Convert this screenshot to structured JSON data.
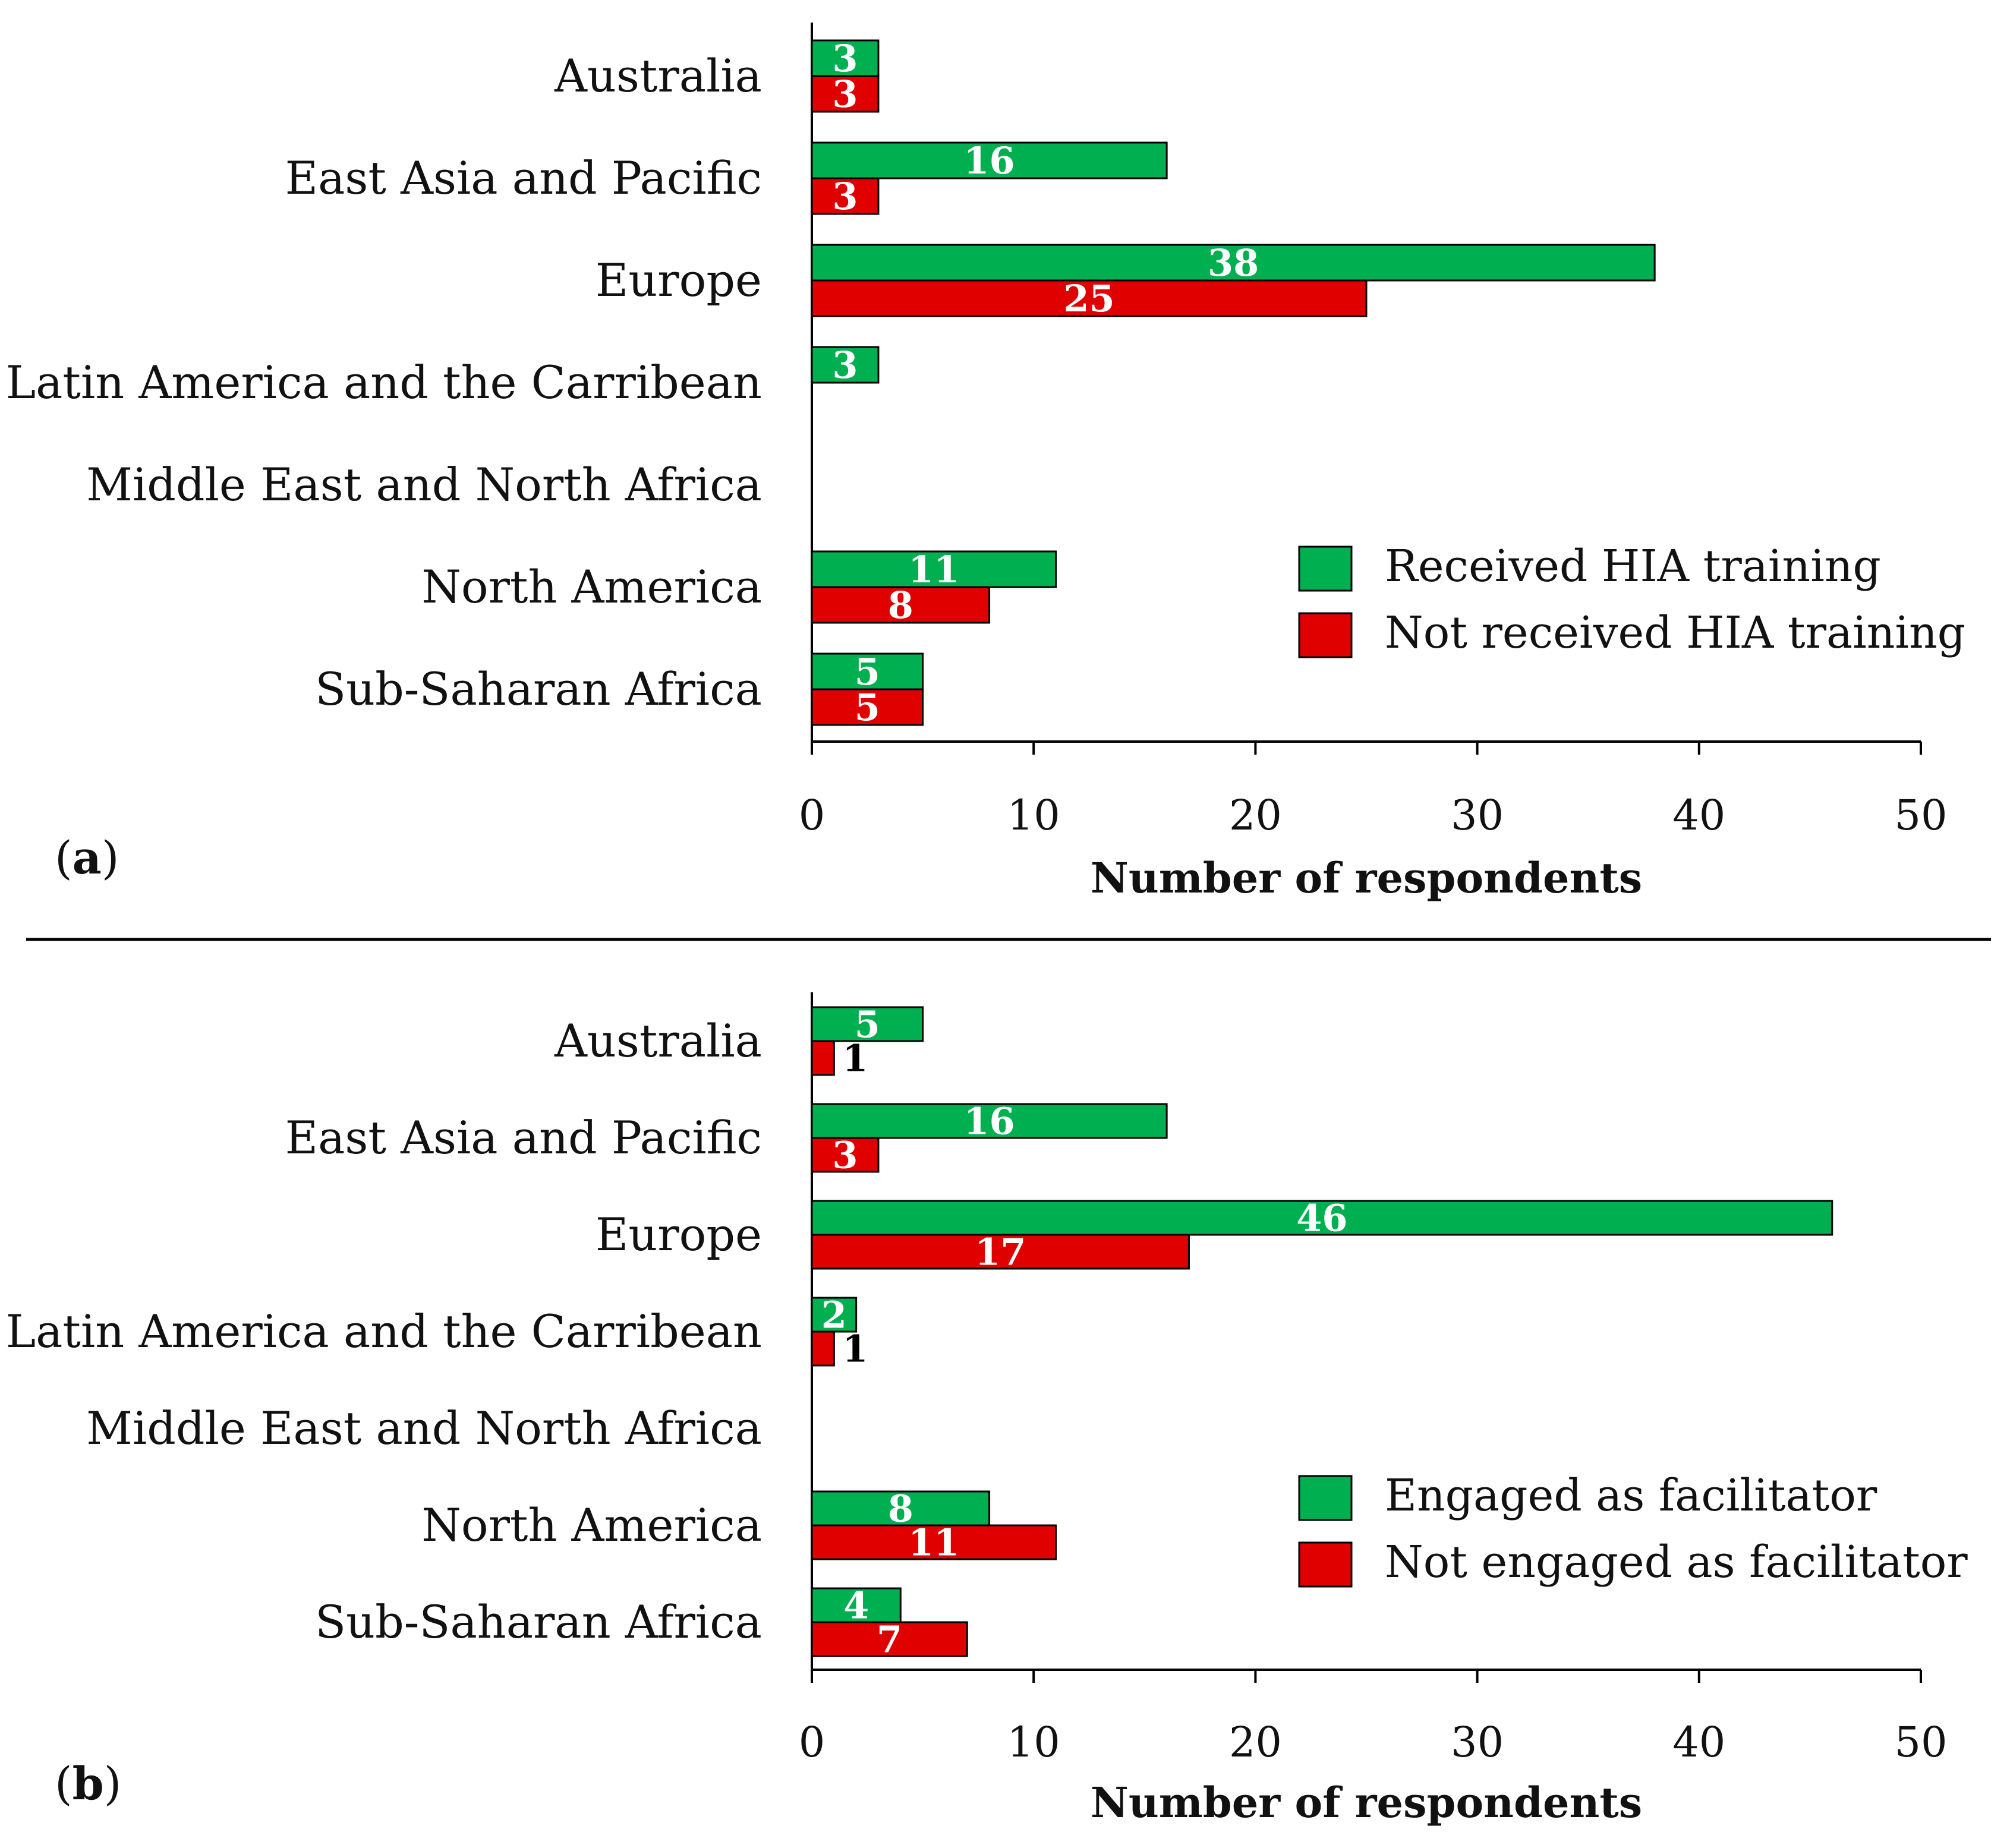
{
  "chart_data": [
    {
      "type": "bar",
      "orientation": "horizontal",
      "panel_label": "(a)",
      "panel_letter": "a",
      "categories": [
        "Australia",
        "East Asia and Pacific",
        "Europe",
        "Latin America and the Carribean",
        "Middle East and North Africa",
        "North America",
        "Sub-Saharan Africa"
      ],
      "series": [
        {
          "name": "Received HIA training",
          "color": "#00b050",
          "values": [
            3,
            16,
            38,
            3,
            0,
            11,
            5
          ]
        },
        {
          "name": "Not received HIA training",
          "color": "#e00000",
          "values": [
            3,
            3,
            25,
            0,
            0,
            8,
            5
          ]
        }
      ],
      "xlabel": "Number of respondents",
      "xlim": [
        0,
        50
      ],
      "xticks": [
        0,
        10,
        20,
        30,
        40,
        50
      ],
      "legend": "bottom-right",
      "grid": false
    },
    {
      "type": "bar",
      "orientation": "horizontal",
      "panel_label": "(b)",
      "panel_letter": "b",
      "categories": [
        "Australia",
        "East Asia and Pacific",
        "Europe",
        "Latin America and the Carribean",
        "Middle East and North Africa",
        "North America",
        "Sub-Saharan Africa"
      ],
      "series": [
        {
          "name": "Engaged as facilitator",
          "color": "#00b050",
          "values": [
            5,
            16,
            46,
            2,
            0,
            8,
            4
          ]
        },
        {
          "name": "Not engaged as facilitator",
          "color": "#e00000",
          "values": [
            1,
            3,
            17,
            1,
            0,
            11,
            7
          ]
        }
      ],
      "xlabel": "Number of respondents",
      "xlim": [
        0,
        50
      ],
      "xticks": [
        0,
        10,
        20,
        30,
        40,
        50
      ],
      "legend": "bottom-right",
      "grid": false
    }
  ]
}
